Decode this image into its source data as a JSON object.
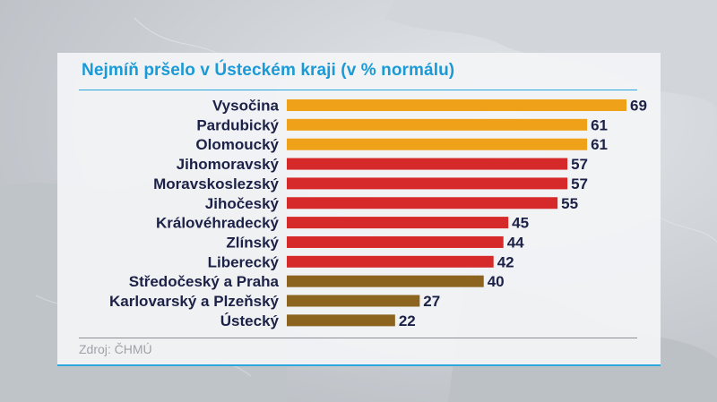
{
  "title": "Nejmíň pršelo v Ústeckém kraji (v % normálu)",
  "source": "Zdroj: ČHMÚ",
  "colors": {
    "title": "#1a9ad6",
    "rule": "#2aa8dd",
    "label_text": "#1c2147",
    "orange": "#f0a11a",
    "red": "#d62a2a",
    "brown": "#8c6420"
  },
  "chart_data": {
    "type": "bar",
    "orientation": "horizontal",
    "title": "Nejmíň pršelo v Ústeckém kraji (v % normálu)",
    "categories": [
      "Vysočina",
      "Pardubický",
      "Olomoucký",
      "Jihomoravský",
      "Moravskoslezský",
      "Jihočeský",
      "Královéhradecký",
      "Zlínský",
      "Liberecký",
      "Středočeský a Praha",
      "Karlovarský a Plzeňský",
      "Ústecký"
    ],
    "values": [
      69,
      61,
      61,
      57,
      57,
      55,
      45,
      44,
      42,
      40,
      27,
      22
    ],
    "bar_colors": [
      "#f0a11a",
      "#f0a11a",
      "#f0a11a",
      "#d62a2a",
      "#d62a2a",
      "#d62a2a",
      "#d62a2a",
      "#d62a2a",
      "#d62a2a",
      "#8c6420",
      "#8c6420",
      "#8c6420"
    ],
    "xlim": [
      0,
      69
    ],
    "grid": false,
    "legend": "none"
  }
}
